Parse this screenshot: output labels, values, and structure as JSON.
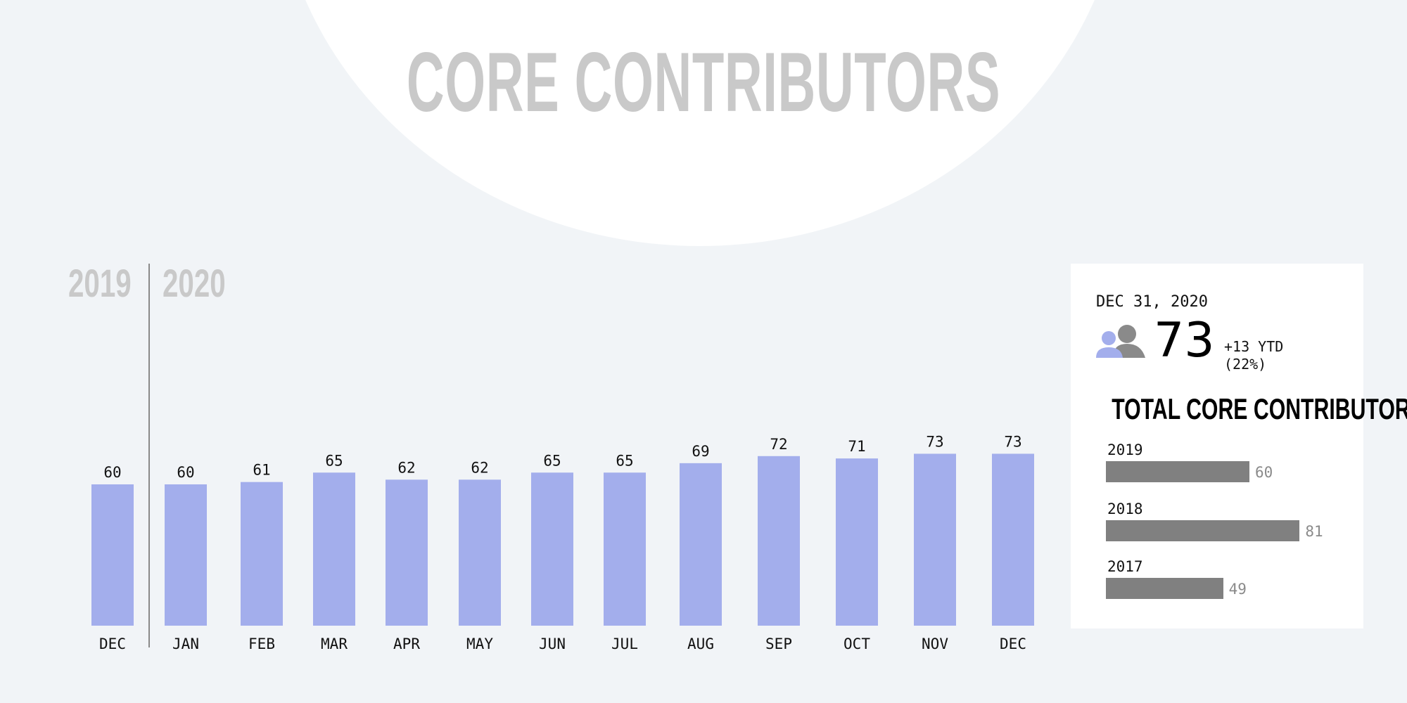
{
  "page": {
    "title": "CORE CONTRIBUTORS",
    "year_left": "2019",
    "year_right": "2020"
  },
  "chart_data": [
    {
      "type": "bar",
      "categories": [
        "DEC",
        "JAN",
        "FEB",
        "MAR",
        "APR",
        "MAY",
        "JUN",
        "JUL",
        "AUG",
        "SEP",
        "OCT",
        "NOV",
        "DEC"
      ],
      "values": [
        60,
        60,
        61,
        65,
        62,
        62,
        65,
        65,
        69,
        72,
        71,
        73,
        73
      ],
      "period_groups": [
        {
          "label": "2019",
          "categories": [
            "DEC"
          ]
        },
        {
          "label": "2020",
          "categories": [
            "JAN",
            "FEB",
            "MAR",
            "APR",
            "MAY",
            "JUN",
            "JUL",
            "AUG",
            "SEP",
            "OCT",
            "NOV",
            "DEC"
          ]
        }
      ],
      "bar_color": "#a3aeec",
      "data_labels": true,
      "grid": false
    },
    {
      "type": "bar",
      "orientation": "horizontal",
      "title": "TOTAL CORE CONTRIBUTORS",
      "categories": [
        "2019",
        "2018",
        "2017"
      ],
      "values": [
        60,
        81,
        49
      ],
      "bar_color": "#808080",
      "data_labels": true
    }
  ],
  "summary_card": {
    "date": "DEC 31, 2020",
    "value": "73",
    "ytd_change": "+13 YTD",
    "ytd_percent": "(22%)",
    "icon": "people-icon",
    "icon_colors": {
      "front": "#a3aeec",
      "back": "#8a8a8a"
    }
  },
  "colors": {
    "background": "#f1f4f7",
    "title": "#c9c9c9",
    "bar": "#a3aeec",
    "bar_gray": "#808080"
  }
}
